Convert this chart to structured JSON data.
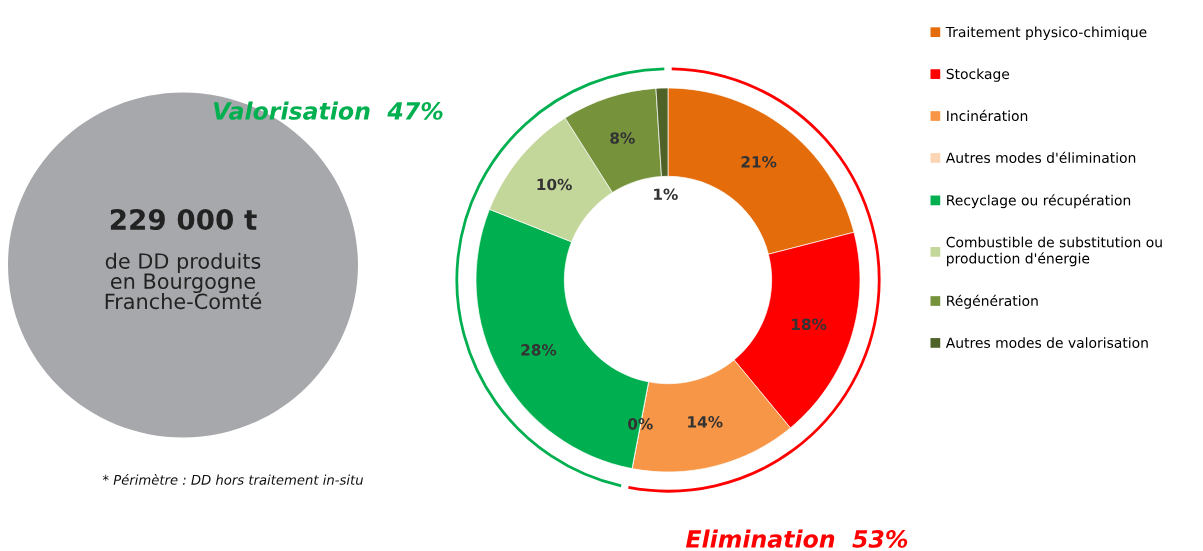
{
  "chart_data": {
    "type": "donut",
    "categories": [
      "Traitement physico-chimique",
      "Stockage",
      "Incinération",
      "Autres modes d'élimination",
      "Recyclage ou récupération",
      "Combustible de substitution ou\nproduction d'énergie",
      "Régénération",
      "Autres modes de valorisation"
    ],
    "values": [
      21,
      18,
      14,
      0,
      28,
      10,
      8,
      1
    ],
    "colors": [
      "#e46c0a",
      "#ff0000",
      "#f79646",
      "#fcd5b4",
      "#00b050",
      "#c4d79b",
      "#76933c",
      "#4f6228"
    ],
    "value_labels": [
      "21%",
      "18%",
      "14%",
      "0%",
      "28%",
      "10%",
      "8%",
      "1%"
    ],
    "legend": "right",
    "annotations": [
      "Valorisation  47%",
      "229 000 t",
      "de DD produits\nen Bourgogne\nFranche-Comté",
      "* Périmètre : DD hors traitement in-situ",
      "Elimination  53%"
    ]
  }
}
